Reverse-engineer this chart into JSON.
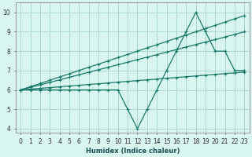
{
  "xlabel": "Humidex (Indice chaleur)",
  "x": [
    0,
    1,
    2,
    3,
    4,
    5,
    6,
    7,
    8,
    9,
    10,
    11,
    12,
    13,
    14,
    15,
    16,
    17,
    18,
    19,
    20,
    21,
    22,
    23
  ],
  "line_jagged": [
    6.0,
    6.0,
    6.0,
    6.0,
    6.0,
    6.0,
    6.0,
    6.0,
    6.0,
    6.0,
    6.0,
    5.0,
    4.0,
    5.0,
    6.0,
    7.0,
    8.0,
    9.0,
    10.0,
    9.0,
    8.0,
    8.0,
    7.0,
    7.0
  ],
  "line_diag1": [
    6.0,
    6.13,
    6.26,
    6.39,
    6.52,
    6.65,
    6.78,
    6.91,
    7.04,
    7.17,
    7.3,
    7.43,
    7.56,
    7.69,
    7.82,
    7.95,
    8.08,
    8.21,
    8.34,
    8.47,
    8.6,
    8.73,
    8.86,
    9.0
  ],
  "line_diag2": [
    6.0,
    6.17,
    6.33,
    6.5,
    6.67,
    6.83,
    7.0,
    7.17,
    7.33,
    7.5,
    7.67,
    7.83,
    8.0,
    8.17,
    8.33,
    8.5,
    8.67,
    8.83,
    9.0,
    9.17,
    9.33,
    9.5,
    9.67,
    9.83
  ],
  "line_flat": [
    6.0,
    6.04,
    6.08,
    6.12,
    6.16,
    6.2,
    6.24,
    6.28,
    6.32,
    6.36,
    6.4,
    6.44,
    6.48,
    6.52,
    6.56,
    6.6,
    6.64,
    6.68,
    6.72,
    6.76,
    6.8,
    6.84,
    6.88,
    6.92
  ],
  "line_color": "#1a7a6a",
  "bg_color": "#d8f5f0",
  "grid_color": "#aad8d0",
  "ylim": [
    3.8,
    10.5
  ],
  "xlim": [
    -0.5,
    23.5
  ]
}
